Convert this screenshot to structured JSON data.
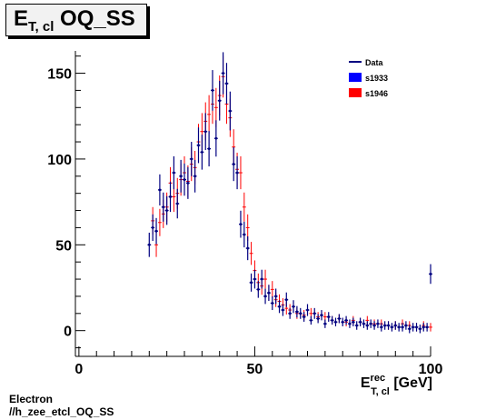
{
  "title": {
    "main": "E",
    "sub": "T, cl",
    "rest": " OQ_SS"
  },
  "footer": {
    "line1": "Electron",
    "line2": "//h_zee_etcl_OQ_SS"
  },
  "chart_data": {
    "type": "scatter",
    "xlabel": {
      "main": "E",
      "sup": "rec",
      "sub": "T, cl",
      "unit": " [GeV]"
    },
    "ylabel": "",
    "xlim": [
      -1,
      100
    ],
    "ylim": [
      -15,
      163
    ],
    "xticks": [
      0,
      50,
      100
    ],
    "yticks": [
      0,
      50,
      100,
      150
    ],
    "grid": false,
    "legend_position": "top-right",
    "legend": [
      {
        "label": "Data",
        "color": "#000080",
        "style": "line"
      },
      {
        "label": "s1933",
        "color": "#0000ff",
        "style": "box"
      },
      {
        "label": "s1946",
        "color": "#ff0000",
        "style": "box"
      }
    ],
    "series": [
      {
        "name": "s1946",
        "color": "#ff0000",
        "x": [
          21,
          22,
          23,
          24,
          25,
          26,
          27,
          28,
          29,
          30,
          31,
          32,
          33,
          34,
          35,
          36,
          37,
          38,
          39,
          40,
          41,
          42,
          43,
          44,
          45,
          46,
          47,
          48,
          49,
          50,
          51,
          52,
          53,
          54,
          55,
          56,
          57,
          58,
          59,
          60,
          62,
          64,
          66,
          68,
          70,
          72,
          74,
          76,
          78,
          80,
          82,
          84,
          86,
          88,
          90,
          92,
          94,
          96,
          98,
          100
        ],
        "y": [
          64,
          50,
          63,
          68,
          72,
          86,
          78,
          80,
          88,
          92,
          87,
          97,
          95,
          110,
          116,
          122,
          126,
          132,
          130,
          137,
          148,
          132,
          124,
          107,
          94,
          92,
          72,
          60,
          45,
          35,
          28,
          26,
          30,
          22,
          24,
          18,
          17,
          15,
          13,
          12,
          10,
          9,
          10,
          8,
          8,
          6,
          7,
          5,
          6,
          5,
          6,
          4,
          4,
          3,
          3,
          4,
          3,
          2,
          3,
          2
        ]
      },
      {
        "name": "Data",
        "color": "#000080",
        "x": [
          20,
          21,
          22,
          23,
          24,
          25,
          26,
          27,
          28,
          29,
          30,
          31,
          32,
          33,
          34,
          35,
          36,
          37,
          38,
          39,
          40,
          41,
          42,
          43,
          44,
          45,
          46,
          47,
          48,
          49,
          50,
          51,
          52,
          53,
          54,
          55,
          56,
          57,
          58,
          59,
          60,
          61,
          62,
          63,
          64,
          65,
          66,
          67,
          68,
          69,
          70,
          71,
          72,
          73,
          74,
          75,
          76,
          77,
          78,
          79,
          80,
          81,
          82,
          83,
          84,
          85,
          86,
          87,
          88,
          89,
          90,
          91,
          92,
          93,
          94,
          95,
          96,
          97,
          98,
          99,
          100
        ],
        "y": [
          50,
          60,
          58,
          82,
          72,
          70,
          78,
          92,
          74,
          90,
          88,
          86,
          100,
          90,
          108,
          104,
          116,
          106,
          140,
          112,
          134,
          150,
          144,
          128,
          97,
          92,
          62,
          56,
          48,
          28,
          30,
          24,
          30,
          20,
          22,
          16,
          20,
          14,
          12,
          18,
          10,
          14,
          11,
          10,
          8,
          12,
          6,
          10,
          7,
          9,
          4,
          8,
          6,
          5,
          7,
          5,
          6,
          4,
          5,
          3,
          5,
          4,
          3,
          4,
          3,
          4,
          2,
          3,
          3,
          2,
          3,
          2,
          2,
          3,
          1,
          2,
          2,
          1,
          2,
          2,
          33
        ]
      }
    ]
  }
}
